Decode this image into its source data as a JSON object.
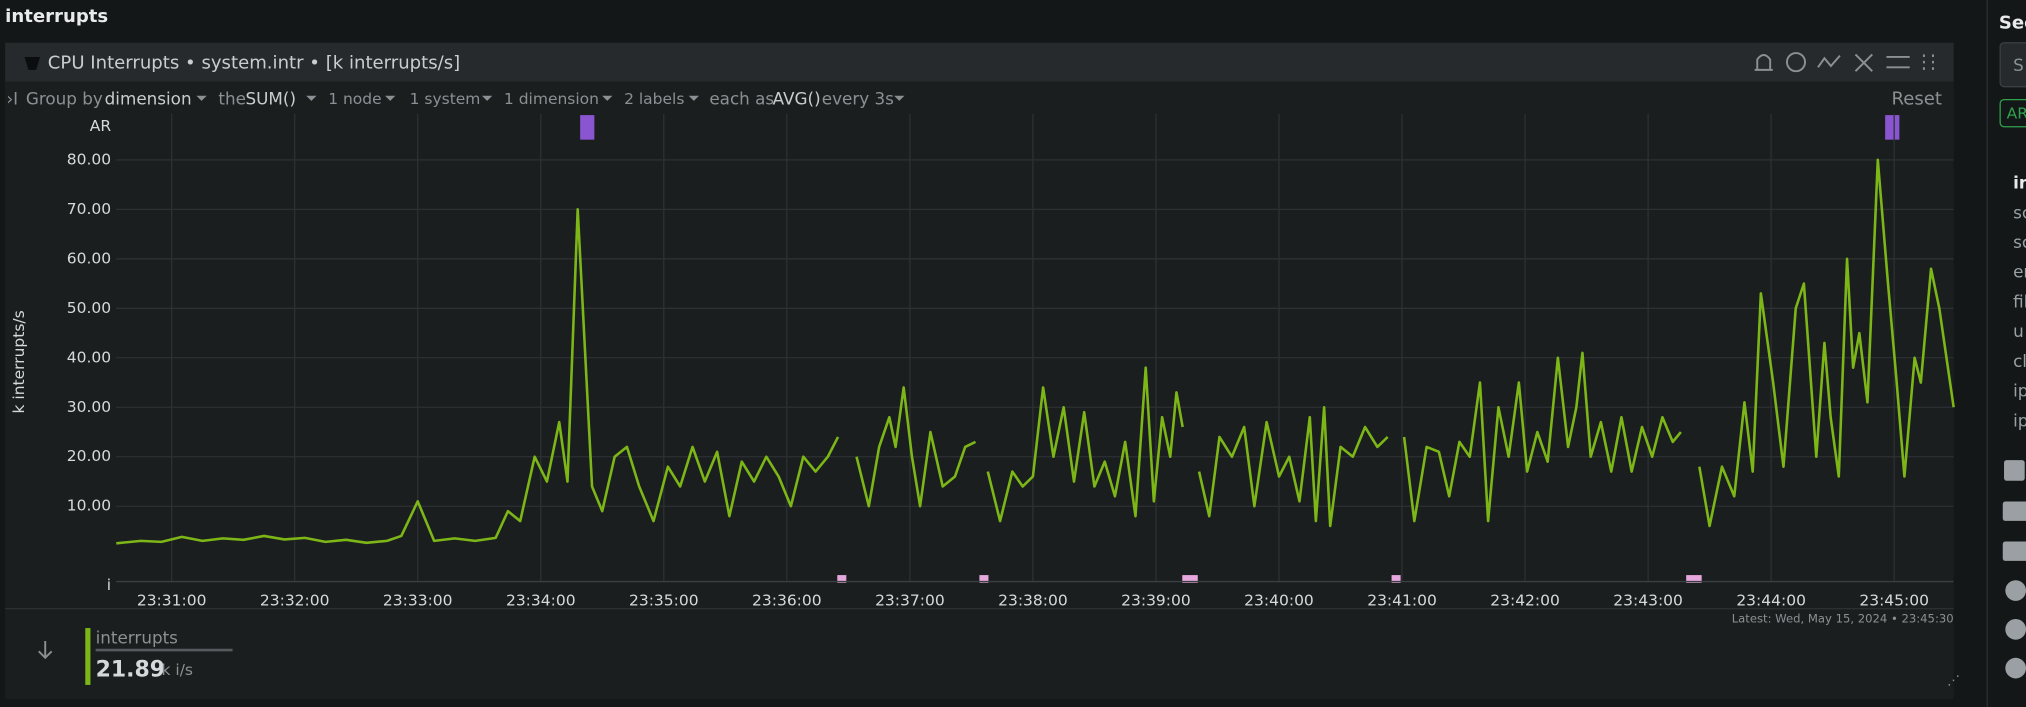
{
  "page_title": "interrupts",
  "chart": {
    "type": "line",
    "title": "CPU Interrupts • system.intr • [k interrupts/s]",
    "toolbar": {
      "group_by": "Group by",
      "group_value": "dimension",
      "the": "the",
      "aggregation": "SUM()",
      "nodes": "1 node",
      "systems": "1 system",
      "dimensions": "1 dimension",
      "labels": "2 labels",
      "each_as": "each as",
      "time_aggregation": "AVG()",
      "every": "every 3s",
      "reset": "Reset"
    },
    "y_label": "k interrupts/s",
    "top_row_label": "AR",
    "bottom_row_label": "i",
    "latest": "Latest:  Wed, May 15, 2024 • 23:45:30",
    "grid": true,
    "xlim": [
      "23:30:33",
      "23:45:29"
    ],
    "xticks": [
      "23:31:00",
      "23:32:00",
      "23:33:00",
      "23:34:00",
      "23:35:00",
      "23:36:00",
      "23:37:00",
      "23:38:00",
      "23:39:00",
      "23:40:00",
      "23:41:00",
      "23:42:00",
      "23:43:00",
      "23:44:00",
      "23:45:00"
    ],
    "ylim": [
      0,
      88
    ],
    "yticks": [
      {
        "value": 10,
        "label": "10.00"
      },
      {
        "value": 20,
        "label": "20.00"
      },
      {
        "value": 30,
        "label": "30.00"
      },
      {
        "value": 40,
        "label": "40.00"
      },
      {
        "value": 50,
        "label": "50.00"
      },
      {
        "value": 60,
        "label": "60.00"
      },
      {
        "value": 70,
        "label": "70.00"
      },
      {
        "value": 80,
        "label": "80.00"
      }
    ],
    "x": [
      "23:30:33",
      "23:30:45",
      "23:30:55",
      "23:31:05",
      "23:31:15",
      "23:31:25",
      "23:31:35",
      "23:31:45",
      "23:31:55",
      "23:32:05",
      "23:32:15",
      "23:32:25",
      "23:32:35",
      "23:32:45",
      "23:32:52",
      "23:33:00",
      "23:33:08",
      "23:33:18",
      "23:33:28",
      "23:33:38",
      "23:33:44",
      "23:33:50",
      "23:33:57",
      "23:34:03",
      "23:34:09",
      "23:34:13",
      "23:34:18",
      "23:34:25",
      "23:34:30",
      "23:34:36",
      "23:34:42",
      "23:34:48",
      "23:34:55",
      "23:35:02",
      "23:35:08",
      "23:35:14",
      "23:35:20",
      "23:35:26",
      "23:35:32",
      "23:35:38",
      "23:35:44",
      "23:35:50",
      "23:35:56",
      "23:36:02",
      "23:36:08",
      "23:36:14",
      "23:36:20",
      "23:36:25",
      "23:36:30",
      "23:36:34",
      "23:36:40",
      "23:36:45",
      "23:36:50",
      "23:36:53",
      "23:36:57",
      "23:37:01",
      "23:37:05",
      "23:37:10",
      "23:37:16",
      "23:37:22",
      "23:37:27",
      "23:37:32",
      "23:37:35",
      "23:37:38",
      "23:37:44",
      "23:37:50",
      "23:37:55",
      "23:38:00",
      "23:38:05",
      "23:38:10",
      "23:38:15",
      "23:38:20",
      "23:38:25",
      "23:38:30",
      "23:38:35",
      "23:38:40",
      "23:38:45",
      "23:38:50",
      "23:38:55",
      "23:38:59",
      "23:39:03",
      "23:39:07",
      "23:39:10",
      "23:39:13",
      "23:39:16",
      "23:39:21",
      "23:39:26",
      "23:39:31",
      "23:39:37",
      "23:39:43",
      "23:39:48",
      "23:39:54",
      "23:40:00",
      "23:40:05",
      "23:40:10",
      "23:40:15",
      "23:40:18",
      "23:40:22",
      "23:40:25",
      "23:40:30",
      "23:40:36",
      "23:40:42",
      "23:40:48",
      "23:40:53",
      "23:40:57",
      "23:41:01",
      "23:41:06",
      "23:41:12",
      "23:41:18",
      "23:41:23",
      "23:41:28",
      "23:41:33",
      "23:41:38",
      "23:41:42",
      "23:41:47",
      "23:41:52",
      "23:41:57",
      "23:42:01",
      "23:42:06",
      "23:42:11",
      "23:42:16",
      "23:42:21",
      "23:42:25",
      "23:42:28",
      "23:42:32",
      "23:42:37",
      "23:42:42",
      "23:42:47",
      "23:42:52",
      "23:42:57",
      "23:43:02",
      "23:43:07",
      "23:43:12",
      "23:43:16",
      "23:43:20",
      "23:43:25",
      "23:43:30",
      "23:43:36",
      "23:43:42",
      "23:43:47",
      "23:43:51",
      "23:43:55",
      "23:44:01",
      "23:44:06",
      "23:44:12",
      "23:44:16",
      "23:44:22",
      "23:44:26",
      "23:44:29",
      "23:44:33",
      "23:44:37",
      "23:44:40",
      "23:44:43",
      "23:44:47",
      "23:44:52",
      "23:44:57",
      "23:45:01",
      "23:45:05",
      "23:45:10",
      "23:45:13",
      "23:45:18",
      "23:45:22",
      "23:45:29"
    ],
    "series": [
      {
        "name": "interrupts",
        "color": "#7cb617",
        "values": [
          2.5,
          3.0,
          2.8,
          3.8,
          3.0,
          3.5,
          3.2,
          4.0,
          3.3,
          3.6,
          2.8,
          3.2,
          2.6,
          3.0,
          4.0,
          11.0,
          3.0,
          3.5,
          3.0,
          3.6,
          9.0,
          7.0,
          20.0,
          15.0,
          27.0,
          15.0,
          70.0,
          14.0,
          9.0,
          20.0,
          22.0,
          14.0,
          7.0,
          18.0,
          14.0,
          22.0,
          15.0,
          21.0,
          8.0,
          19.0,
          15.0,
          20.0,
          16.0,
          10.0,
          20.0,
          17.0,
          20.0,
          24.0,
          null,
          20.0,
          10.0,
          22.0,
          28.0,
          22.0,
          34.0,
          20.0,
          10.0,
          25.0,
          14.0,
          16.0,
          22.0,
          23.0,
          null,
          17.0,
          7.0,
          17.0,
          14.0,
          16.0,
          34.0,
          20.0,
          30.0,
          15.0,
          29.0,
          14.0,
          19.0,
          12.0,
          23.0,
          8.0,
          38.0,
          11.0,
          28.0,
          20.0,
          33.0,
          26.0,
          null,
          17.0,
          8.0,
          24.0,
          20.0,
          26.0,
          10.0,
          27.0,
          16.0,
          20.0,
          11.0,
          28.0,
          7.0,
          30.0,
          6.0,
          22.0,
          20.0,
          26.0,
          22.0,
          24.0,
          null,
          24.0,
          7.0,
          22.0,
          21.0,
          12.0,
          23.0,
          20.0,
          35.0,
          7.0,
          30.0,
          20.0,
          35.0,
          17.0,
          25.0,
          19.0,
          40.0,
          22.0,
          30.0,
          41.0,
          20.0,
          27.0,
          17.0,
          28.0,
          17.0,
          26.0,
          20.0,
          28.0,
          23.0,
          25.0,
          null,
          18.0,
          6.0,
          18.0,
          12.0,
          31.0,
          17.0,
          53.0,
          35.0,
          18.0,
          50.0,
          55.0,
          20.0,
          43.0,
          28.0,
          16.0,
          60.0,
          38.0,
          45.0,
          31.0,
          80.0,
          55.0,
          36.0,
          16.0,
          40.0,
          35.0,
          58.0,
          50.0,
          30.0
        ]
      }
    ]
  },
  "legend": {
    "name": "interrupts",
    "value": 21.89,
    "unit": "k i/s"
  },
  "sidebar": {
    "title": "Sec",
    "search": "S",
    "badge": "AR",
    "items": [
      "in",
      "sc",
      "sc",
      "er",
      "fil",
      "u",
      "cl",
      "ip",
      "ip"
    ]
  }
}
